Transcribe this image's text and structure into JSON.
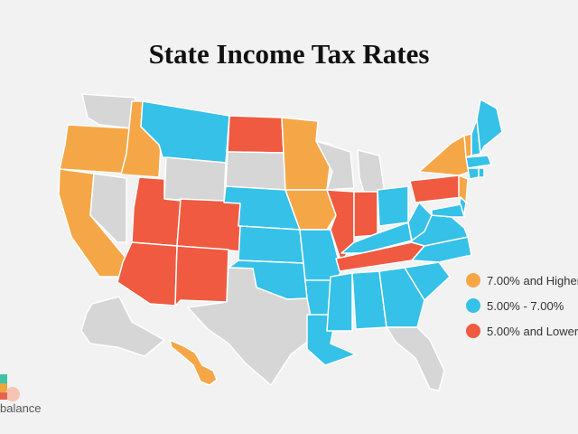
{
  "title": "State Income Tax Rates",
  "legend": [
    {
      "label": "7.00% and Higher",
      "color": "#f5a748",
      "category": "high"
    },
    {
      "label": "5.00% - 7.00%",
      "color": "#35c1e8",
      "category": "mid"
    },
    {
      "label": "5.00% and Lower",
      "color": "#ef5a41",
      "category": "low"
    }
  ],
  "colors": {
    "no_data": "#d6d6d6",
    "border": "#ffffff",
    "background": "#f2f2f2"
  },
  "states": {
    "WA": "none",
    "OR": "high",
    "CA": "high",
    "NV": "none",
    "ID": "high",
    "MT": "mid",
    "WY": "none",
    "UT": "low",
    "AZ": "low",
    "CO": "low",
    "NM": "low",
    "ND": "low",
    "SD": "none",
    "NE": "mid",
    "KS": "mid",
    "OK": "mid",
    "TX": "none",
    "MN": "high",
    "IA": "high",
    "MO": "mid",
    "AR": "mid",
    "LA": "mid",
    "WI": "none",
    "IL": "low",
    "MI": "none",
    "IN": "low",
    "OH": "mid",
    "KY": "mid",
    "TN": "low",
    "MS": "mid",
    "AL": "mid",
    "GA": "mid",
    "FL": "none",
    "SC": "mid",
    "NC": "mid",
    "VA": "mid",
    "WV": "mid",
    "PA": "low",
    "NY": "high",
    "NJ": "high",
    "VT": "high",
    "NH": "mid",
    "ME": "mid",
    "MA": "mid",
    "CT": "mid",
    "RI": "mid",
    "DE": "mid",
    "MD": "mid",
    "AK": "none",
    "HI": "high"
  },
  "logo_text": "balance"
}
